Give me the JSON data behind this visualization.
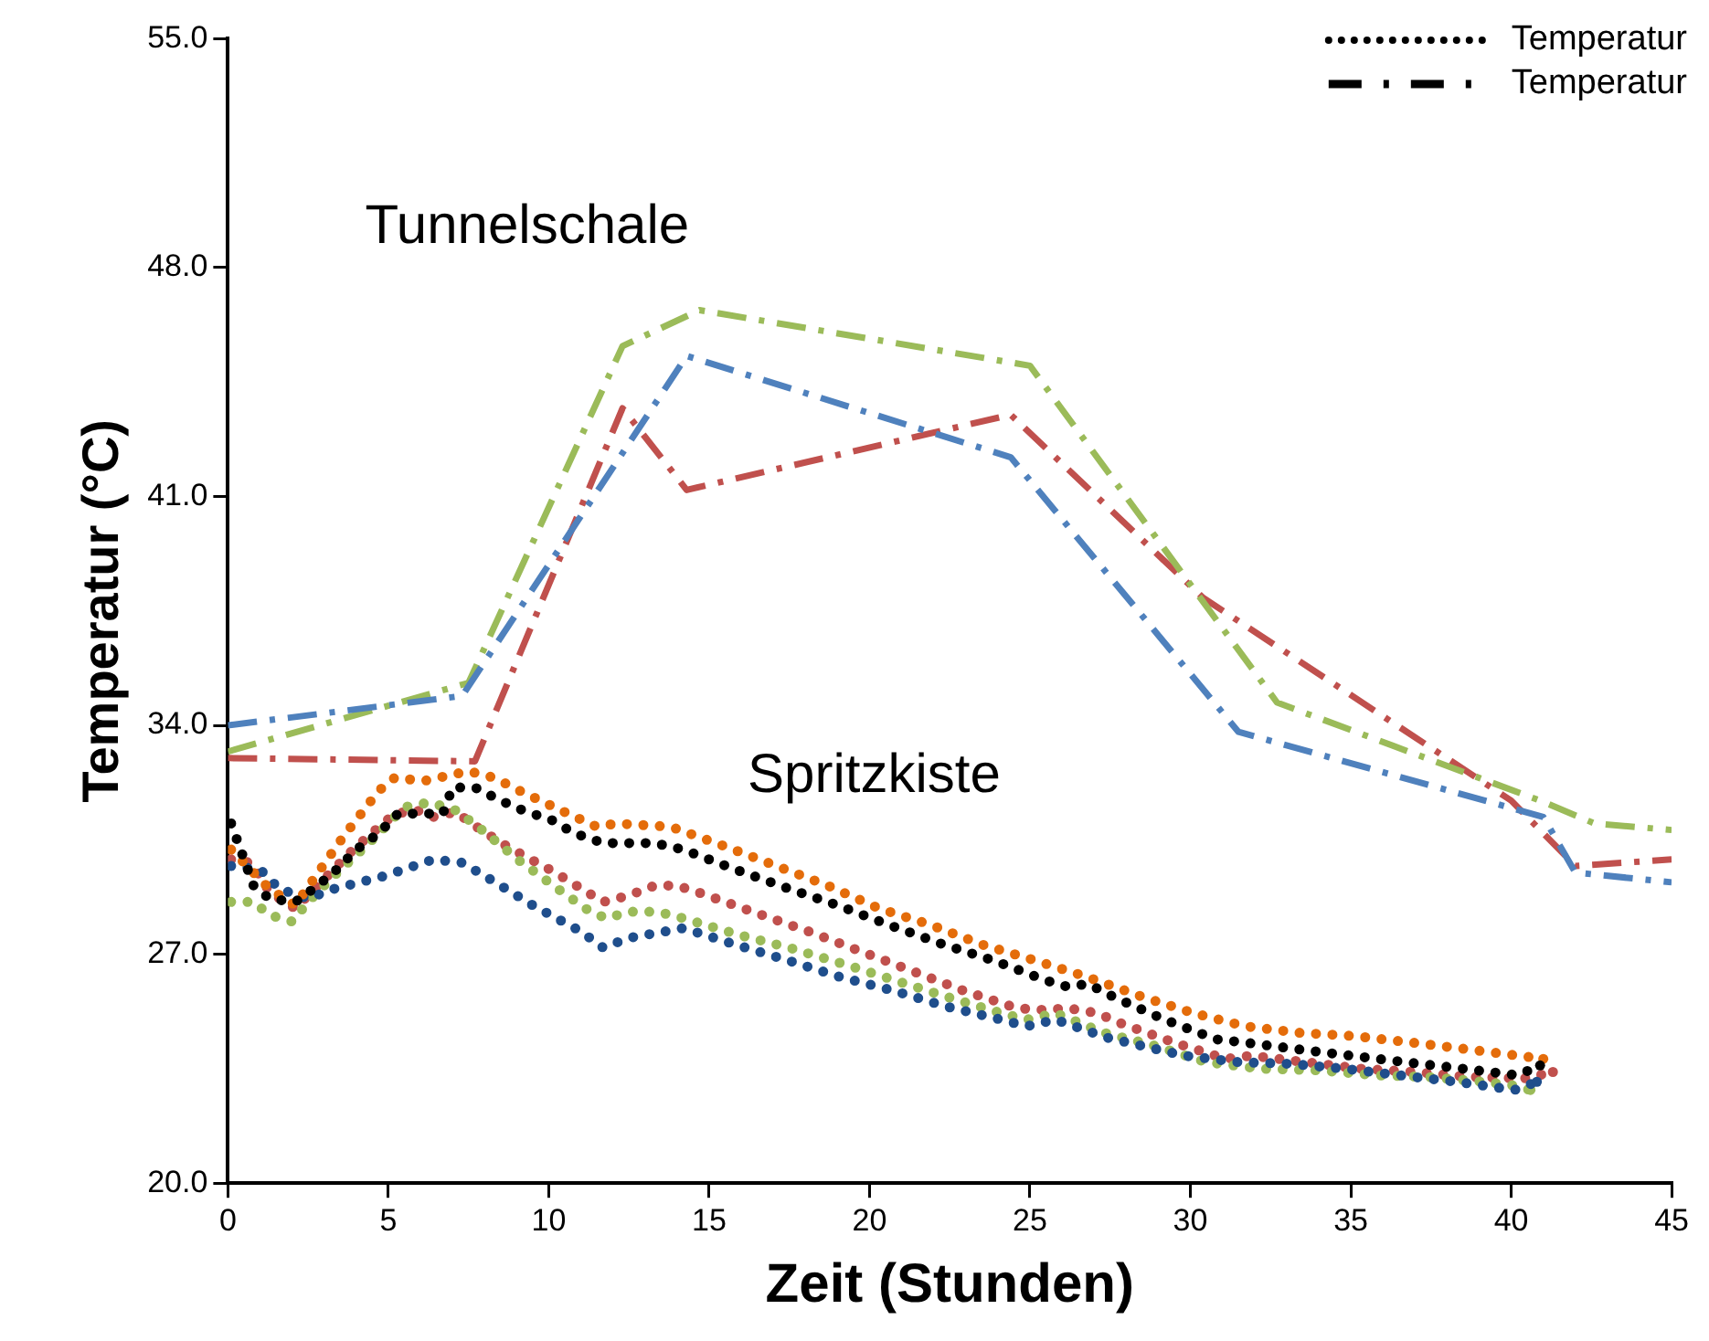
{
  "chart_data": {
    "type": "line",
    "xlabel": "Zeit (Stunden)",
    "ylabel": "Temperatur (°C)",
    "xlim": [
      0,
      45
    ],
    "xticks": [
      0,
      5,
      10,
      15,
      20,
      25,
      30,
      35,
      40,
      45
    ],
    "ylim": [
      20,
      55
    ],
    "yticks": [
      {
        "value": 20,
        "label": "20.0"
      },
      {
        "value": 27,
        "label": "27.0"
      },
      {
        "value": 34,
        "label": "34.0"
      },
      {
        "value": 41,
        "label": "41.0"
      },
      {
        "value": 48,
        "label": "48.0"
      },
      {
        "value": 55,
        "label": "55.0"
      }
    ],
    "grid": false,
    "legend": "top right",
    "marker": "none",
    "annotations": [
      "Tunnelschale",
      "Spritzkiste"
    ],
    "series": [
      {
        "name": "Temperatur",
        "color": "#000000",
        "line_style": "dotted"
      },
      {
        "name": "Temperatur",
        "color": "#000000",
        "line_style": "dashed"
      },
      {
        "color": "#4f81bd",
        "line_style": "dashed",
        "x": [
          0,
          7.3,
          14.3,
          24.4,
          31.5,
          41,
          42,
          45
        ],
        "values": [
          34.0,
          34.9,
          45.3,
          42.2,
          33.8,
          31.2,
          29.5,
          29.2
        ]
      },
      {
        "color": "#9bbb59",
        "line_style": "dashed",
        "x": [
          0,
          7.5,
          12.3,
          14.7,
          25,
          32.7,
          40.9,
          42.6,
          45
        ],
        "values": [
          33.2,
          35.3,
          45.6,
          46.7,
          45.0,
          34.7,
          31.7,
          31.0,
          30.8
        ]
      },
      {
        "color": "#c0504d",
        "line_style": "dashed",
        "x": [
          0,
          7.7,
          12.3,
          14.3,
          24.4,
          30.4,
          40,
          42,
          45
        ],
        "values": [
          33.0,
          32.9,
          43.7,
          41.2,
          43.5,
          37.9,
          31.7,
          29.7,
          29.9
        ]
      },
      {
        "color": "#000000",
        "line_style": "dotted",
        "x": [
          0.1,
          0.8,
          1.3,
          2.1,
          2.8,
          3.4,
          4.0,
          4.7,
          5.3,
          6.7,
          7.0,
          7.7,
          8.5,
          9.2,
          10.1,
          10.8,
          11.7,
          13.3,
          14.2,
          15.8,
          17.5,
          19.0,
          20.6,
          22.3,
          23.9,
          25.5,
          26.2,
          26.8,
          27.6,
          29.2,
          30.8,
          31.7,
          33.3,
          35.0,
          36.7,
          38.5,
          40.2,
          40.9
        ],
        "values": [
          31.0,
          29.1,
          28.7,
          28.6,
          29.1,
          29.6,
          30.2,
          30.7,
          31.3,
          31.3,
          32.1,
          32.1,
          31.7,
          31.4,
          31.1,
          30.7,
          30.4,
          30.4,
          30.2,
          29.6,
          29.0,
          28.5,
          27.9,
          27.3,
          26.8,
          26.2,
          26.0,
          26.1,
          25.7,
          25.0,
          24.4,
          24.3,
          24.1,
          23.9,
          23.7,
          23.5,
          23.3,
          23.6
        ]
      },
      {
        "color": "#e46c0a",
        "line_style": "dotted",
        "x": [
          0.1,
          1.3,
          2.1,
          2.6,
          3.6,
          4.7,
          5.2,
          6.1,
          7.5,
          8.3,
          9.1,
          10.6,
          11.5,
          12.1,
          13.8,
          15.5,
          17.1,
          18.7,
          20.3,
          21.9,
          23.5,
          25.2,
          26.8,
          28.5,
          30.1,
          31.7,
          33.4,
          35.1,
          36.9,
          38.6,
          40.2,
          41.0
        ],
        "values": [
          30.2,
          29.0,
          28.5,
          29.2,
          30.6,
          32.0,
          32.4,
          32.3,
          32.6,
          32.4,
          32.0,
          31.3,
          30.9,
          31.0,
          30.9,
          30.3,
          29.7,
          29.1,
          28.4,
          27.9,
          27.3,
          26.8,
          26.3,
          25.7,
          25.2,
          24.8,
          24.6,
          24.5,
          24.3,
          24.1,
          23.9,
          23.8
        ]
      },
      {
        "color": "#1f4e8c",
        "line_style": "dotted",
        "x": [
          0.1,
          1.0,
          1.6,
          2.5,
          3.3,
          4.9,
          6.4,
          7.3,
          8.0,
          9.5,
          11.0,
          11.7,
          12.5,
          14.2,
          15.8,
          17.5,
          19.1,
          20.7,
          22.4,
          24.1,
          24.9,
          25.8,
          27.4,
          29.8,
          31.5,
          33.1,
          34.8,
          36.5,
          38.3,
          40.1,
          40.8
        ],
        "values": [
          29.7,
          29.6,
          29.0,
          28.7,
          29.0,
          29.4,
          29.9,
          29.8,
          29.4,
          28.5,
          27.7,
          27.2,
          27.5,
          27.8,
          27.3,
          26.8,
          26.3,
          25.9,
          25.4,
          25.0,
          24.8,
          25.0,
          24.45,
          23.9,
          23.7,
          23.65,
          23.5,
          23.3,
          23.1,
          22.85,
          23.1
        ]
      },
      {
        "color": "#9bbb59",
        "line_style": "dotted",
        "x": [
          0.1,
          0.8,
          1.3,
          2.0,
          2.5,
          3.2,
          4.4,
          5.5,
          6.3,
          7.1,
          7.8,
          9.1,
          10.5,
          11.3,
          11.8,
          12.5,
          13.4,
          14.2,
          15.9,
          17.5,
          19.2,
          20.8,
          22.4,
          24.1,
          24.9,
          25.8,
          27.3,
          28.9,
          30.5,
          32.2,
          34.0,
          35.8,
          37.4,
          39.1,
          40.0,
          40.6
        ],
        "values": [
          28.6,
          28.6,
          28.2,
          28.0,
          28.6,
          29.3,
          30.4,
          31.5,
          31.65,
          31.4,
          30.9,
          29.85,
          28.85,
          28.3,
          28.1,
          28.3,
          28.3,
          28.1,
          27.6,
          27.2,
          26.7,
          26.2,
          25.7,
          25.2,
          25.0,
          25.2,
          24.6,
          24.2,
          23.7,
          23.5,
          23.45,
          23.3,
          23.25,
          23.1,
          23.0,
          22.85
        ]
      },
      {
        "color": "#c0504d",
        "line_style": "dotted",
        "x": [
          0.1,
          0.7,
          1.0,
          1.3,
          2.1,
          2.6,
          3.3,
          3.9,
          4.6,
          5.2,
          5.9,
          6.4,
          7.1,
          7.9,
          8.7,
          10.2,
          11.7,
          12.5,
          13.3,
          14.0,
          14.8,
          16.5,
          18.1,
          19.7,
          21.3,
          22.9,
          24.6,
          25.4,
          26.2,
          27.1,
          27.8,
          29.5,
          31.1,
          31.9,
          33.6,
          35.3,
          37.0,
          38.7,
          40.4,
          41.3
        ],
        "values": [
          29.9,
          29.8,
          29.4,
          28.9,
          28.4,
          28.9,
          29.6,
          30.2,
          30.8,
          31.3,
          31.4,
          31.2,
          31.35,
          30.8,
          30.3,
          29.5,
          28.6,
          28.8,
          29.1,
          29.1,
          28.85,
          28.25,
          27.7,
          27.1,
          26.5,
          25.9,
          25.35,
          25.3,
          25.35,
          25.2,
          24.9,
          24.3,
          23.8,
          23.9,
          23.7,
          23.5,
          23.4,
          23.25,
          23.2,
          23.4
        ]
      }
    ]
  }
}
